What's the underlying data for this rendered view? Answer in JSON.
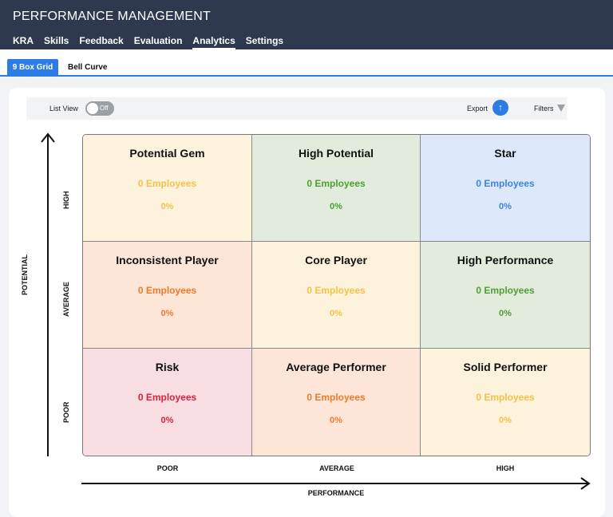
{
  "app": {
    "title": "PERFORMANCE MANAGEMENT"
  },
  "nav": {
    "items": [
      "KRA",
      "Skills",
      "Feedback",
      "Evaluation",
      "Analytics",
      "Settings"
    ],
    "active": "Analytics"
  },
  "subtabs": {
    "items": [
      "9 Box Grid",
      "Bell Curve"
    ],
    "active": "9 Box Grid"
  },
  "toolbar": {
    "list_view_label": "List View",
    "toggle_state": "Off",
    "export_label": "Export",
    "filters_label": "Filters"
  },
  "axes": {
    "y_title": "POTENTIAL",
    "y_ticks": [
      "HIGH",
      "AVERAGE",
      "POOR"
    ],
    "x_title": "PERFORMANCE",
    "x_ticks": [
      "POOR",
      "AVERAGE",
      "HIGH"
    ]
  },
  "grid": {
    "cells": [
      {
        "title": "Potential Gem",
        "count": "0 Employees",
        "percent": "0%",
        "bg": "#fdf2dc",
        "fg": "#f4c24a"
      },
      {
        "title": "High Potential",
        "count": "0 Employees",
        "percent": "0%",
        "bg": "#e3ecdc",
        "fg": "#4e9e36"
      },
      {
        "title": "Star",
        "count": "0 Employees",
        "percent": "0%",
        "bg": "#dde9fb",
        "fg": "#3d83e3"
      },
      {
        "title": "Inconsistent Player",
        "count": "0 Employees",
        "percent": "0%",
        "bg": "#fde6d8",
        "fg": "#ef7a2c"
      },
      {
        "title": "Core Player",
        "count": "0 Employees",
        "percent": "0%",
        "bg": "#fdf2dc",
        "fg": "#f4c24a"
      },
      {
        "title": "High Performance",
        "count": "0 Employees",
        "percent": "0%",
        "bg": "#e3ecdc",
        "fg": "#4e9e36"
      },
      {
        "title": "Risk",
        "count": "0 Employees",
        "percent": "0%",
        "bg": "#f8dde2",
        "fg": "#d8233e"
      },
      {
        "title": "Average Performer",
        "count": "0 Employees",
        "percent": "0%",
        "bg": "#fde6d8",
        "fg": "#ef7a2c"
      },
      {
        "title": "Solid Performer",
        "count": "0 Employees",
        "percent": "0%",
        "bg": "#fdf2dc",
        "fg": "#f4c24a"
      }
    ]
  },
  "icons": {
    "export": "upload-arrow-icon",
    "filters": "funnel-icon"
  },
  "colors": {
    "header_bg": "#2e3950",
    "accent": "#2d7be5"
  }
}
